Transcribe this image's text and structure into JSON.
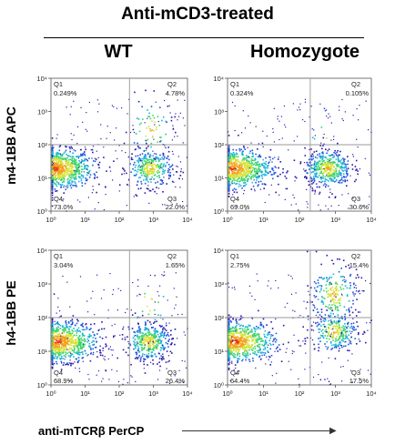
{
  "header": {
    "title": "Anti-mCD3-treated",
    "columns": [
      "WT",
      "Homozygote"
    ]
  },
  "rows": [
    "m4-1BB APC",
    "h4-1BB PE"
  ],
  "x_axis_label": "anti-mTCRβ PerCP",
  "chart_data": [
    {
      "type": "scatter",
      "name": "m4-1BB APC WT",
      "x_scale": "log",
      "y_scale": "log",
      "xlim": [
        1,
        10000
      ],
      "ylim": [
        1,
        10000
      ],
      "x_ticks": [
        "10⁰",
        "10¹",
        "10²",
        "10³",
        "10⁴"
      ],
      "y_ticks": [
        "10⁰",
        "10¹",
        "10²",
        "10³",
        "10⁴"
      ],
      "quadrants": {
        "Q1": "0.249%",
        "Q2": "4.78%",
        "Q3": "22.0%",
        "Q4": "73.0%"
      },
      "populations": [
        {
          "x_center": 1.2,
          "y_center": 20,
          "weight": 0.73
        },
        {
          "x_center": 800,
          "y_center": 20,
          "weight": 0.22
        },
        {
          "x_center": 800,
          "y_center": 300,
          "weight": 0.048
        }
      ]
    },
    {
      "type": "scatter",
      "name": "m4-1BB APC Homozygote",
      "x_scale": "log",
      "y_scale": "log",
      "xlim": [
        1,
        10000
      ],
      "ylim": [
        1,
        10000
      ],
      "x_ticks": [
        "10⁰",
        "10¹",
        "10²",
        "10³",
        "10⁴"
      ],
      "y_ticks": [
        "10⁰",
        "10¹",
        "10²",
        "10³",
        "10⁴"
      ],
      "quadrants": {
        "Q1": "0.324%",
        "Q2": "0.105%",
        "Q3": "30.6%",
        "Q4": "69.0%"
      },
      "populations": [
        {
          "x_center": 1.2,
          "y_center": 20,
          "weight": 0.69
        },
        {
          "x_center": 600,
          "y_center": 20,
          "weight": 0.306
        },
        {
          "x_center": 600,
          "y_center": 200,
          "weight": 0.001
        }
      ]
    },
    {
      "type": "scatter",
      "name": "h4-1BB PE WT",
      "x_scale": "log",
      "y_scale": "log",
      "xlim": [
        1,
        10000
      ],
      "ylim": [
        1,
        10000
      ],
      "x_ticks": [
        "10⁰",
        "10¹",
        "10²",
        "10³",
        "10⁴"
      ],
      "y_ticks": [
        "10⁰",
        "10¹",
        "10²",
        "10³",
        "10⁴"
      ],
      "quadrants": {
        "Q1": "3.04%",
        "Q2": "1.65%",
        "Q3": "26.4%",
        "Q4": "68.9%"
      },
      "populations": [
        {
          "x_center": 1.5,
          "y_center": 20,
          "weight": 0.689
        },
        {
          "x_center": 700,
          "y_center": 20,
          "weight": 0.264
        },
        {
          "x_center": 700,
          "y_center": 300,
          "weight": 0.0165
        }
      ]
    },
    {
      "type": "scatter",
      "name": "h4-1BB PE Homozygote",
      "x_scale": "log",
      "y_scale": "log",
      "xlim": [
        1,
        10000
      ],
      "ylim": [
        1,
        10000
      ],
      "x_ticks": [
        "10⁰",
        "10¹",
        "10²",
        "10³",
        "10⁴"
      ],
      "y_ticks": [
        "10⁰",
        "10¹",
        "10²",
        "10³",
        "10⁴"
      ],
      "quadrants": {
        "Q1": "2.75%",
        "Q2": "15.4%",
        "Q3": "17.5%",
        "Q4": "64.4%"
      },
      "populations": [
        {
          "x_center": 1.5,
          "y_center": 20,
          "weight": 0.644
        },
        {
          "x_center": 900,
          "y_center": 40,
          "weight": 0.175
        },
        {
          "x_center": 900,
          "y_center": 500,
          "weight": 0.154
        }
      ]
    }
  ],
  "colors": {
    "density": [
      "#2b1aa8",
      "#1e5be0",
      "#1fb5d8",
      "#3fd46a",
      "#d8e23a",
      "#f4a11c",
      "#e83b1e"
    ],
    "gate_line": "#9a9a9a",
    "axis": "#555555"
  }
}
